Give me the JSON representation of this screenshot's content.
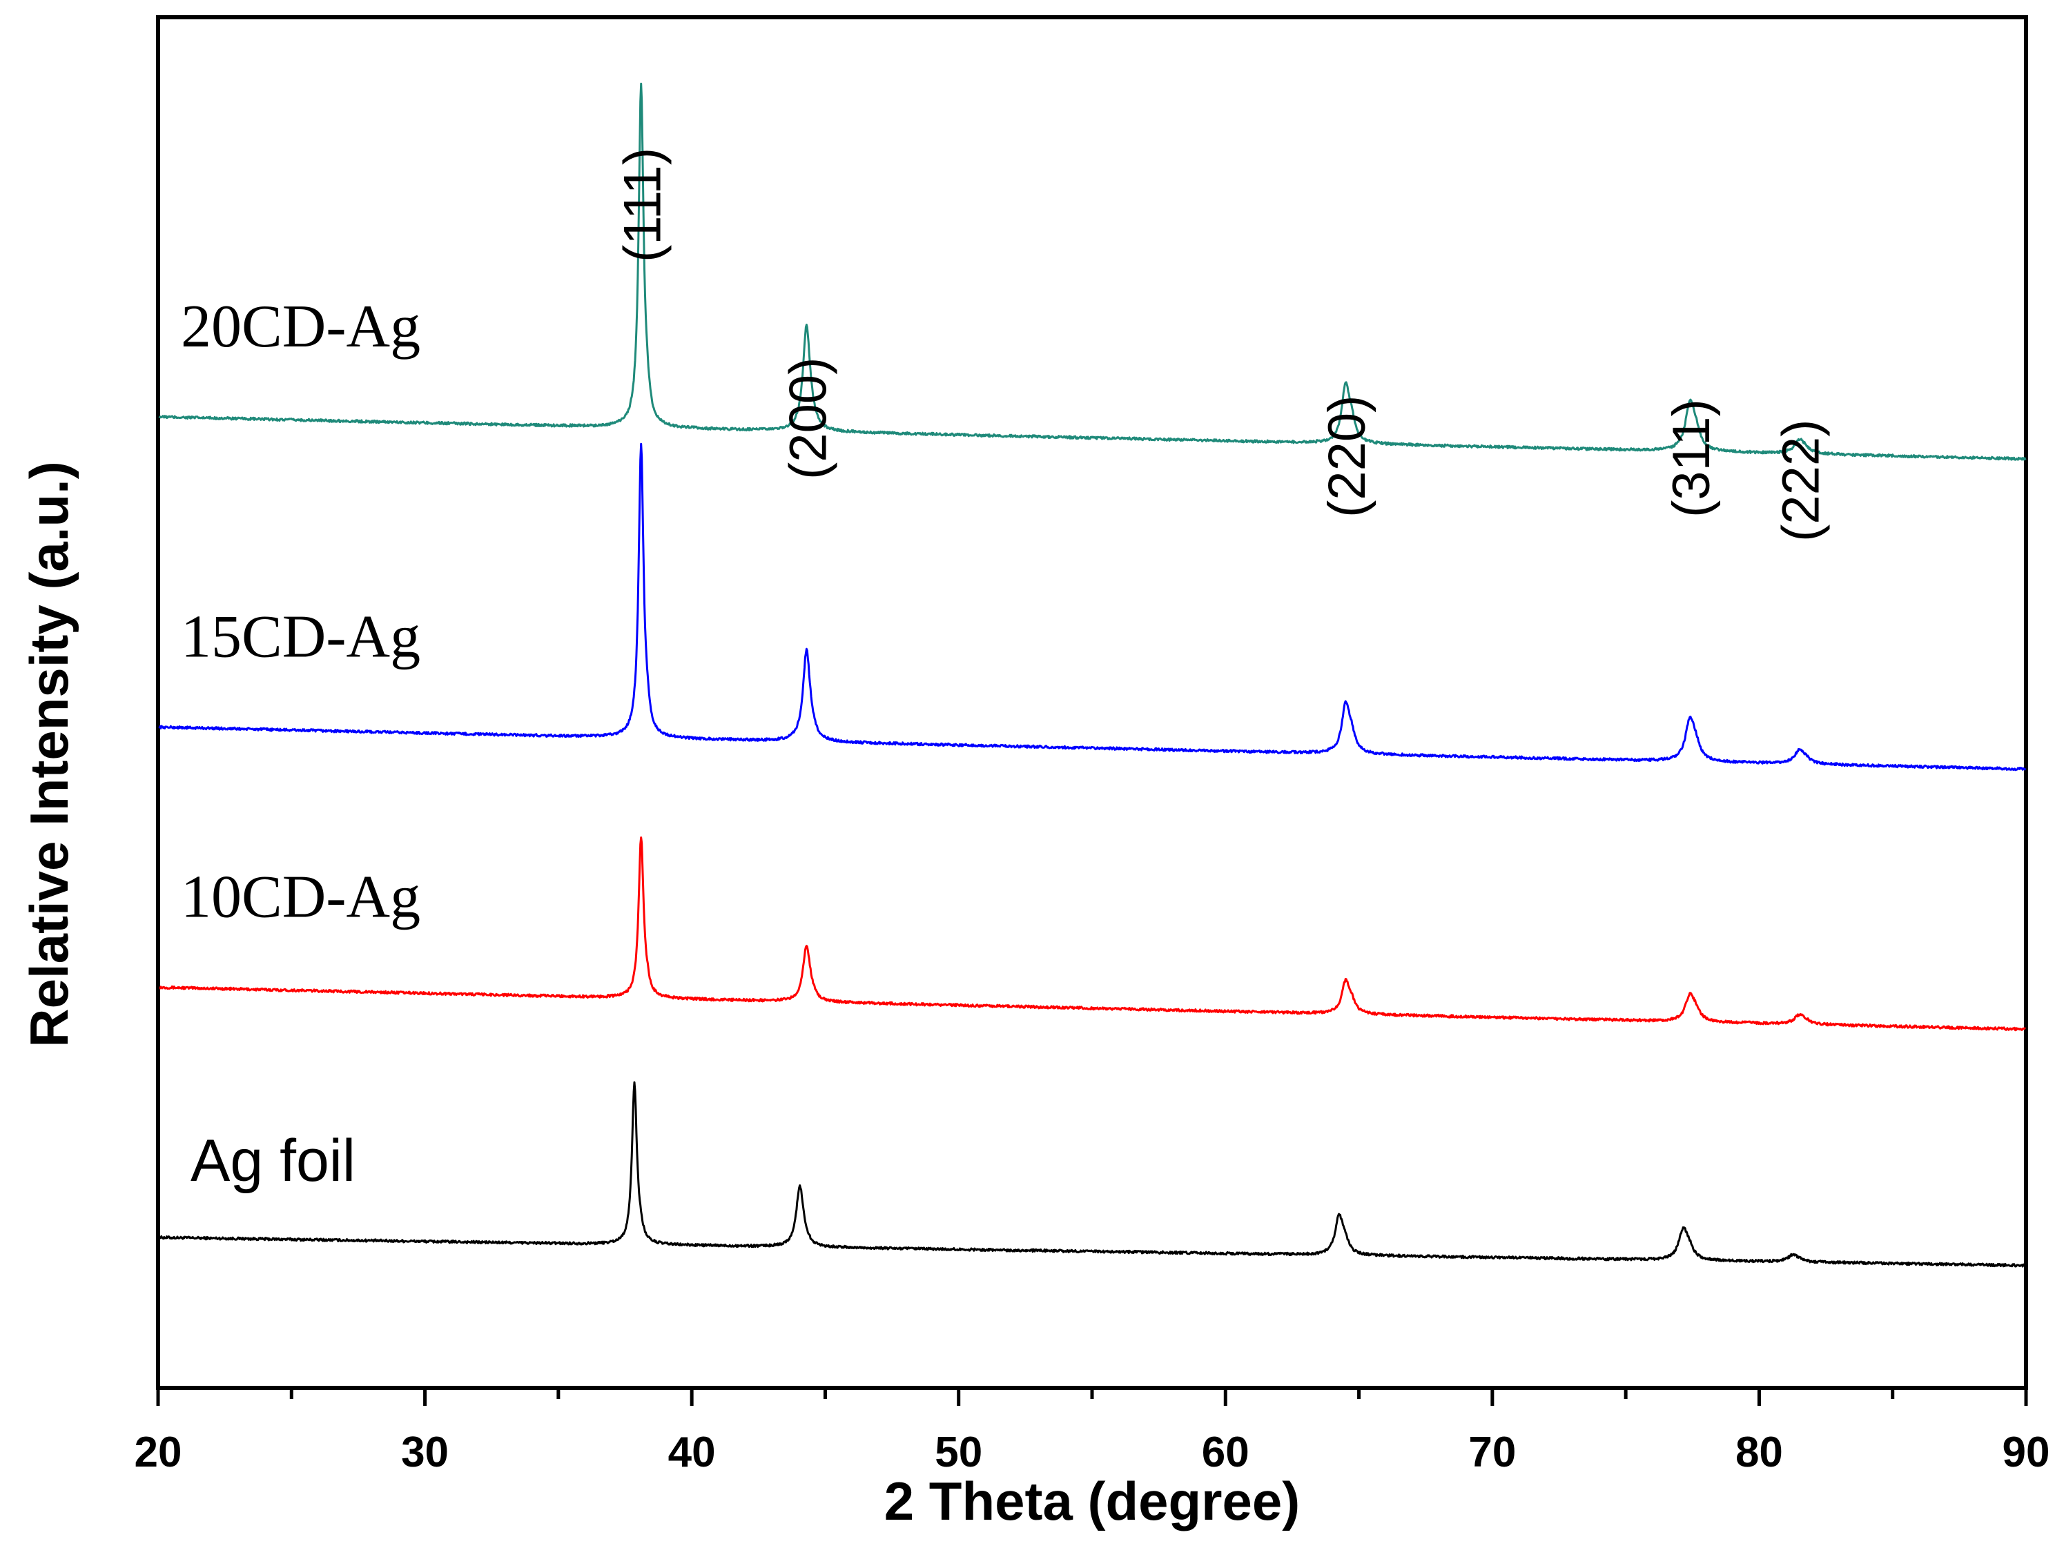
{
  "chart_data": {
    "type": "line",
    "xlabel": "2 Theta (degree)",
    "ylabel": "Relative Intensity (a.u.)",
    "xlim": [
      20,
      90
    ],
    "x_ticks": [
      "20",
      "30",
      "40",
      "50",
      "60",
      "70",
      "80",
      "90"
    ],
    "y_ticks_shown": false,
    "grid": false,
    "legend": "none (series labelled inline)",
    "peak_positions": [
      38.1,
      44.3,
      64.5,
      77.4,
      81.5
    ],
    "peak_annotations": [
      {
        "text": "(111)",
        "x": 38.1
      },
      {
        "text": "(200)",
        "x": 44.3
      },
      {
        "text": "(220)",
        "x": 64.5
      },
      {
        "text": "(311)",
        "x": 77.4
      },
      {
        "text": "(222)",
        "x": 81.5
      }
    ],
    "series": [
      {
        "name": "Ag foil",
        "color": "#000000",
        "shift": -0.25,
        "baseline": 0.0,
        "baseline_slope": -0.002,
        "peaks": [
          {
            "x": 38.1,
            "height": 0.8
          },
          {
            "x": 44.3,
            "height": 0.3
          },
          {
            "x": 64.5,
            "height": 0.18
          },
          {
            "x": 77.4,
            "height": 0.14
          },
          {
            "x": 81.5,
            "height": 0.03
          }
        ]
      },
      {
        "name": "10CD-Ag",
        "color": "#ff0000",
        "shift": 0.0,
        "baseline": 1.25,
        "baseline_slope": -0.003,
        "peaks": [
          {
            "x": 38.1,
            "height": 0.8
          },
          {
            "x": 44.3,
            "height": 0.28
          },
          {
            "x": 64.5,
            "height": 0.15
          },
          {
            "x": 77.4,
            "height": 0.12
          },
          {
            "x": 81.5,
            "height": 0.04
          }
        ]
      },
      {
        "name": "15CD-Ag",
        "color": "#0000ff",
        "shift": 0.0,
        "baseline": 2.55,
        "baseline_slope": -0.003,
        "peaks": [
          {
            "x": 38.1,
            "height": 1.45
          },
          {
            "x": 44.3,
            "height": 0.45
          },
          {
            "x": 64.5,
            "height": 0.23
          },
          {
            "x": 77.4,
            "height": 0.19
          },
          {
            "x": 81.5,
            "height": 0.06
          }
        ]
      },
      {
        "name": "20CD-Ag",
        "color": "#1f8a7a",
        "shift": 0.0,
        "baseline": 4.1,
        "baseline_slope": -0.003,
        "peaks": [
          {
            "x": 38.1,
            "height": 1.7
          },
          {
            "x": 44.3,
            "height": 0.52
          },
          {
            "x": 64.5,
            "height": 0.27
          },
          {
            "x": 77.4,
            "height": 0.22
          },
          {
            "x": 81.5,
            "height": 0.06
          }
        ]
      }
    ]
  }
}
